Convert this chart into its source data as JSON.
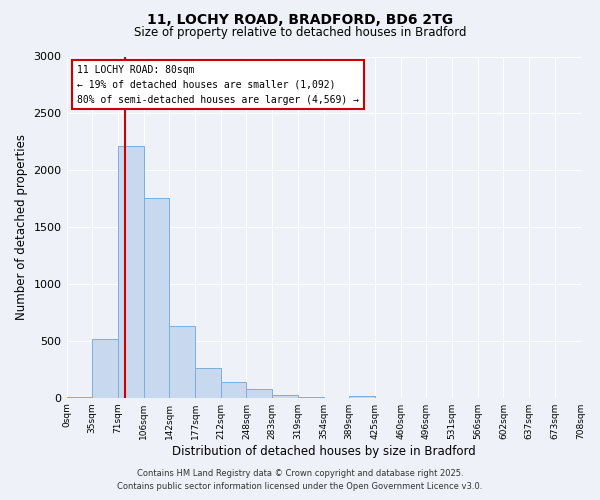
{
  "title": "11, LOCHY ROAD, BRADFORD, BD6 2TG",
  "subtitle": "Size of property relative to detached houses in Bradford",
  "xlabel": "Distribution of detached houses by size in Bradford",
  "ylabel": "Number of detached properties",
  "bar_color": "#c8d9ef",
  "bar_edge_color": "#7aafda",
  "background_color": "#eef2f8",
  "grid_color": "#ffffff",
  "bin_labels": [
    "0sqm",
    "35sqm",
    "71sqm",
    "106sqm",
    "142sqm",
    "177sqm",
    "212sqm",
    "248sqm",
    "283sqm",
    "319sqm",
    "354sqm",
    "389sqm",
    "425sqm",
    "460sqm",
    "496sqm",
    "531sqm",
    "566sqm",
    "602sqm",
    "637sqm",
    "673sqm",
    "708sqm"
  ],
  "bar_heights": [
    10,
    515,
    2215,
    1760,
    630,
    260,
    140,
    75,
    25,
    5,
    0,
    15,
    0,
    0,
    0,
    0,
    0,
    0,
    0,
    0
  ],
  "ylim": [
    0,
    3000
  ],
  "yticks": [
    0,
    500,
    1000,
    1500,
    2000,
    2500,
    3000
  ],
  "property_line_label": "11 LOCHY ROAD: 80sqm",
  "annotation_line1": "← 19% of detached houses are smaller (1,092)",
  "annotation_line2": "80% of semi-detached houses are larger (4,569) →",
  "box_color": "#ffffff",
  "box_edge_color": "#cc0000",
  "vline_color": "#cc0000",
  "footer_line1": "Contains HM Land Registry data © Crown copyright and database right 2025.",
  "footer_line2": "Contains public sector information licensed under the Open Government Licence v3.0."
}
